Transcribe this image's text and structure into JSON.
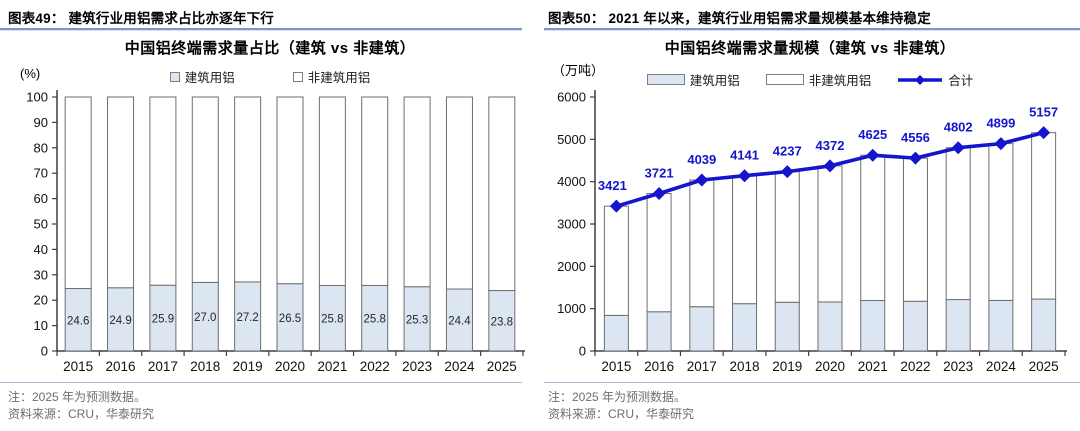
{
  "figures": [
    {
      "caption": "图表49： 建筑行业用铝需求占比亦逐年下行",
      "note": "注：2025 年为预测数据。",
      "source": "资料来源：CRU，华泰研究"
    },
    {
      "caption": "图表50： 2021 年以来，建筑行业用铝需求量规模基本维持稳定",
      "note": "注：2025 年为预测数据。",
      "source": "资料来源：CRU，华泰研究"
    }
  ],
  "chart_data": [
    {
      "type": "bar",
      "subtype": "100%-stacked-column",
      "title": "中国铝终端需求量占比（建筑 vs 非建筑）",
      "unit_label": "(%)",
      "categories": [
        "2015",
        "2016",
        "2017",
        "2018",
        "2019",
        "2020",
        "2021",
        "2022",
        "2023",
        "2024",
        "2025"
      ],
      "series": [
        {
          "name": "建筑用铝",
          "fill": "#dce6f2",
          "values": [
            24.6,
            24.9,
            25.9,
            27.0,
            27.2,
            26.5,
            25.8,
            25.8,
            25.3,
            24.4,
            23.8
          ],
          "labels": [
            "24.6",
            "24.9",
            "25.9",
            "27.0",
            "27.2",
            "26.5",
            "25.8",
            "25.8",
            "25.3",
            "24.4",
            "23.8"
          ],
          "show_labels": true
        },
        {
          "name": "非建筑用铝",
          "fill": "#ffffff",
          "values": [
            75.4,
            75.1,
            74.1,
            73.0,
            72.8,
            73.5,
            74.2,
            74.2,
            74.7,
            75.6,
            76.2
          ],
          "show_labels": false
        }
      ],
      "ylim": [
        0,
        100
      ],
      "ytick_step": 10,
      "grid": false,
      "legend_position": "top",
      "legend_marker": "square",
      "bar_border_color": "#6e6e6e",
      "label_color": "#262626"
    },
    {
      "type": "bar+line",
      "subtype": "stacked-column-with-total-line",
      "title": "中国铝终端需求量规模（建筑 vs 非建筑）",
      "unit_label": "（万吨）",
      "categories": [
        "2015",
        "2016",
        "2017",
        "2018",
        "2019",
        "2020",
        "2021",
        "2022",
        "2023",
        "2024",
        "2025"
      ],
      "series": [
        {
          "name": "建筑用铝",
          "fill": "#dce6f2",
          "values": [
            841,
            927,
            1046,
            1118,
            1152,
            1159,
            1193,
            1175,
            1215,
            1195,
            1227
          ],
          "show_labels": false
        },
        {
          "name": "非建筑用铝",
          "fill": "#ffffff",
          "values": [
            2580,
            2794,
            2993,
            3023,
            3085,
            3213,
            3432,
            3381,
            3587,
            3704,
            3930
          ],
          "show_labels": false
        }
      ],
      "line": {
        "name": "合计",
        "color": "#1515cd",
        "values": [
          3421,
          3721,
          4039,
          4141,
          4237,
          4372,
          4625,
          4556,
          4802,
          4899,
          5157
        ],
        "labels": [
          "3421",
          "3721",
          "4039",
          "4141",
          "4237",
          "4372",
          "4625",
          "4556",
          "4802",
          "4899",
          "5157"
        ],
        "show_labels": true
      },
      "ylim": [
        0,
        6000
      ],
      "ytick_step": 1000,
      "grid": false,
      "legend_position": "top",
      "legend_marker": "bar",
      "bar_border_color": "#6e6e6e"
    }
  ]
}
